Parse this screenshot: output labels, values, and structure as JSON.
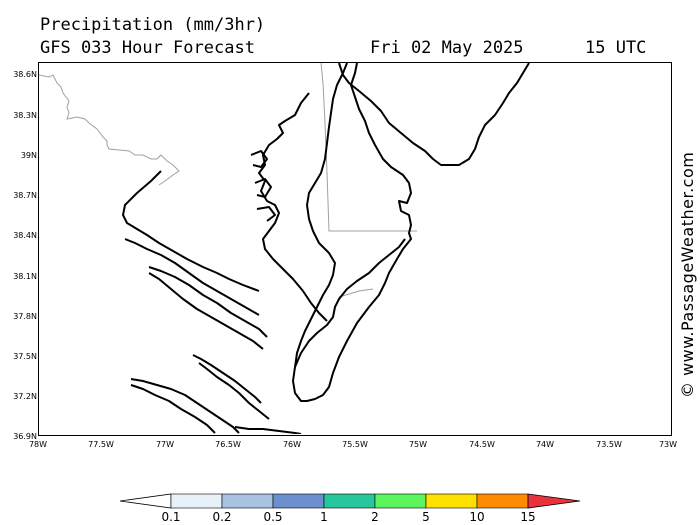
{
  "header": {
    "title": "Precipitation (mm/3hr)",
    "subtitle": "GFS 033 Hour Forecast",
    "date": "Fri 02 May 2025",
    "time": "15 UTC"
  },
  "map": {
    "lat_labels": [
      "38.6N",
      "38.3N",
      "39N",
      "38.7N",
      "38.4N",
      "38.1N",
      "37.8N",
      "37.5N",
      "37.2N",
      "36.9N"
    ],
    "lon_labels": [
      "78W",
      "77.5W",
      "77W",
      "76.5W",
      "76W",
      "75.5W",
      "75W",
      "74.5W",
      "74W",
      "73.5W",
      "73W"
    ],
    "coast_color": "#000000",
    "border_color": "#a0a0a0"
  },
  "credit": "© www.PassageWeather.com",
  "colorbar": {
    "labels": [
      "0.1",
      "0.2",
      "0.5",
      "1",
      "2",
      "5",
      "10",
      "15"
    ],
    "colors": [
      "#e8f0f8",
      "#a9c2e0",
      "#6c8fd0",
      "#26c79a",
      "#5cf45c",
      "#ffe100",
      "#ff8c00",
      "#e8323c"
    ],
    "under_color": "#ffffff"
  }
}
